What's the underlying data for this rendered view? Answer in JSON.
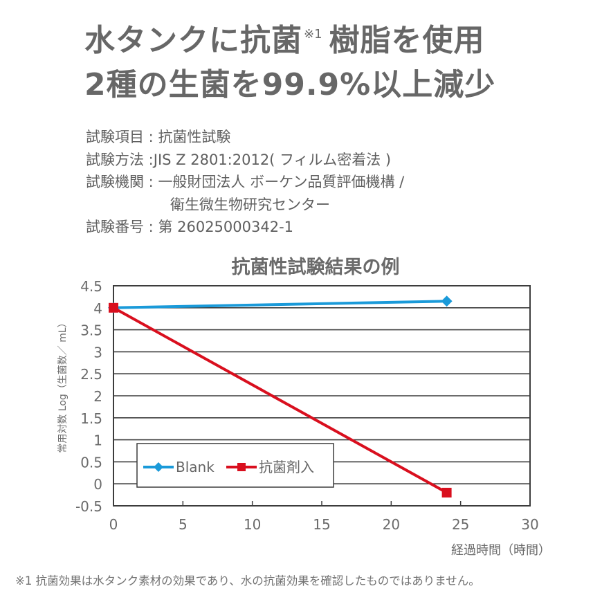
{
  "headline": {
    "line1_main": "水タンクに抗菌",
    "line1_note": "※1",
    "line1_rest": "樹脂を使用",
    "line2": "2種の生菌を99.9%以上減少"
  },
  "test_info": [
    {
      "label": "試験項目 : ",
      "value": "抗菌性試験"
    },
    {
      "label": "試験方法 :",
      "value": "JIS Z 2801:2012( フィルム密着法 )"
    },
    {
      "label": "試験機関 : ",
      "value": "一般財団法人 ボーケン品質評価機構 /"
    },
    {
      "label": "",
      "value": "衛生微生物研究センター"
    },
    {
      "label": "試験番号 : ",
      "value": "第 26025000342-1"
    }
  ],
  "footnote": "※1 抗菌効果は水タンク素材の効果であり、水の抗菌効果を確認したものではありません。",
  "chart_data": {
    "type": "line",
    "title": "抗菌性試験結果の例",
    "xlabel": "経過時間（時間）",
    "ylabel": "常用対数 Log（生菌数／ mL）",
    "xlim": [
      0,
      30
    ],
    "ylim": [
      -0.5,
      4.5
    ],
    "x_ticks": [
      0,
      5,
      10,
      15,
      20,
      25,
      30
    ],
    "y_ticks": [
      -0.5,
      0,
      0.5,
      1,
      1.5,
      2,
      2.5,
      3,
      3.5,
      4,
      4.5
    ],
    "grid": "horizontal",
    "legend_position": "lower-left inside",
    "series": [
      {
        "name": "Blank",
        "color": "#1a9ad9",
        "marker": "diamond",
        "x": [
          0,
          24
        ],
        "y": [
          4.0,
          4.15
        ]
      },
      {
        "name": "抗菌剤入",
        "color": "#d90f1e",
        "marker": "square",
        "x": [
          0,
          24
        ],
        "y": [
          4.0,
          -0.2
        ]
      }
    ]
  },
  "colors": {
    "text": "#666666",
    "axis": "#3c3c3c",
    "blank": "#1a9ad9",
    "antibacterial": "#d90f1e"
  }
}
